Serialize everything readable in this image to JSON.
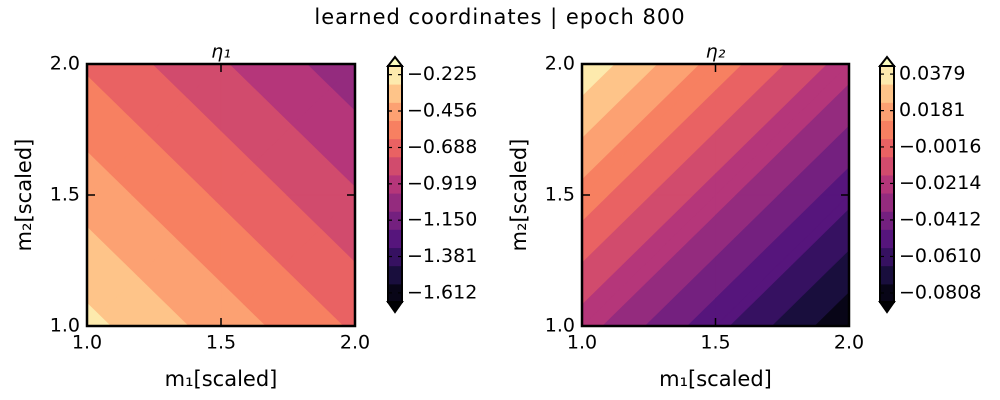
{
  "title": "learned coordinates  |  epoch 800",
  "chart_data": [
    {
      "type": "contour",
      "title": "η₁",
      "colormap": "magma",
      "x": [
        1,
        1.5,
        2
      ],
      "y": [
        1,
        1.5,
        2
      ],
      "z": [
        [
          -0.25,
          -0.45,
          -0.65
        ],
        [
          -0.45,
          -0.65,
          -0.85
        ],
        [
          -0.65,
          -0.85,
          -1.05
        ]
      ],
      "levels": [
        -1.67,
        -1.555,
        -1.439,
        -1.324,
        -1.208,
        -1.093,
        -0.978,
        -0.862,
        -0.747,
        -0.632,
        -0.516,
        -0.401,
        -0.285,
        -0.17
      ],
      "xlim": [
        1,
        2
      ],
      "ylim": [
        1,
        2
      ],
      "xticks": [
        {
          "value": 1,
          "label": "1.0"
        },
        {
          "value": 1.5,
          "label": "1.5"
        },
        {
          "value": 2,
          "label": "2.0"
        }
      ],
      "yticks": [
        {
          "value": 1,
          "label": "1.0"
        },
        {
          "value": 1.5,
          "label": "1.5"
        },
        {
          "value": 2,
          "label": "2.0"
        }
      ],
      "xlabel": "m₁[scaled]",
      "ylabel": "m₂[scaled]",
      "cticks": [
        {
          "value": -0.225,
          "label": "−0.225"
        },
        {
          "value": -0.456,
          "label": "−0.456"
        },
        {
          "value": -0.688,
          "label": "−0.688"
        },
        {
          "value": -0.919,
          "label": "−0.919"
        },
        {
          "value": -1.15,
          "label": "−1.150"
        },
        {
          "value": -1.381,
          "label": "−1.381"
        },
        {
          "value": -1.612,
          "label": "−1.612"
        }
      ]
    },
    {
      "type": "contour",
      "title": "η₂",
      "colormap": "magma",
      "x": [
        1,
        1.5,
        2
      ],
      "y": [
        1,
        1.5,
        2
      ],
      "z": [
        [
          -0.022,
          -0.053,
          -0.084
        ],
        [
          0.009,
          -0.022,
          -0.053
        ],
        [
          0.04,
          0.009,
          -0.022
        ]
      ],
      "levels": [
        -0.0857,
        -0.0759,
        -0.066,
        -0.0562,
        -0.0463,
        -0.0365,
        -0.0266,
        -0.0168,
        -0.0069,
        0.0029,
        0.0128,
        0.0226,
        0.0325,
        0.0423
      ],
      "xlim": [
        1,
        2
      ],
      "ylim": [
        1,
        2
      ],
      "xticks": [
        {
          "value": 1,
          "label": "1.0"
        },
        {
          "value": 1.5,
          "label": "1.5"
        },
        {
          "value": 2,
          "label": "2.0"
        }
      ],
      "yticks": [
        {
          "value": 1,
          "label": "1.0"
        },
        {
          "value": 1.5,
          "label": "1.5"
        },
        {
          "value": 2,
          "label": "2.0"
        }
      ],
      "xlabel": "m₁[scaled]",
      "ylabel": "m₂[scaled]",
      "cticks": [
        0.0379,
        0.0181,
        {
          "value": -0.0016,
          "label": "−0.0016"
        },
        {
          "value": -0.0214,
          "label": "−0.0214"
        },
        {
          "value": -0.0412,
          "label": "−0.0412"
        },
        {
          "value": -0.061,
          "label": "−0.0610"
        },
        {
          "value": -0.0808,
          "label": "−0.0808"
        }
      ]
    }
  ]
}
